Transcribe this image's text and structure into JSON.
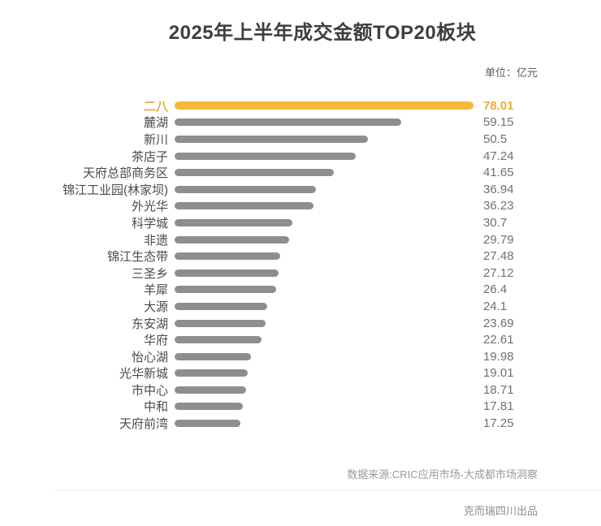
{
  "title": "2025年上半年成交金额TOP20板块",
  "unit_label": "单位：亿元",
  "footer": {
    "source": "数据来源:CRIC应用市场-大成都市场洞察",
    "credit": "克而瑞四川出品"
  },
  "colors": {
    "highlight_bar": "#F2B93C",
    "bar": "#8E8E8E",
    "highlight_text": "#E8AC3C",
    "label_text": "#4A4A4A",
    "value_text": "#707070"
  },
  "chart_data": {
    "type": "bar",
    "orientation": "horizontal",
    "title": "2025年上半年成交金额TOP20板块",
    "unit": "亿元",
    "xlim": [
      0,
      78.01
    ],
    "grid": false,
    "legend": false,
    "highlight_index": 0,
    "categories": [
      "二八",
      "麓湖",
      "新川",
      "茶店子",
      "天府总部商务区",
      "锦江工业园(林家坝)",
      "外光华",
      "科学城",
      "非遗",
      "锦江生态带",
      "三圣乡",
      "羊犀",
      "大源",
      "东安湖",
      "华府",
      "怡心湖",
      "光华新城",
      "市中心",
      "中和",
      "天府前湾"
    ],
    "values": [
      78.01,
      59.15,
      50.5,
      47.24,
      41.65,
      36.94,
      36.23,
      30.7,
      29.79,
      27.48,
      27.12,
      26.4,
      24.1,
      23.69,
      22.61,
      19.98,
      19.01,
      18.71,
      17.81,
      17.25
    ]
  }
}
